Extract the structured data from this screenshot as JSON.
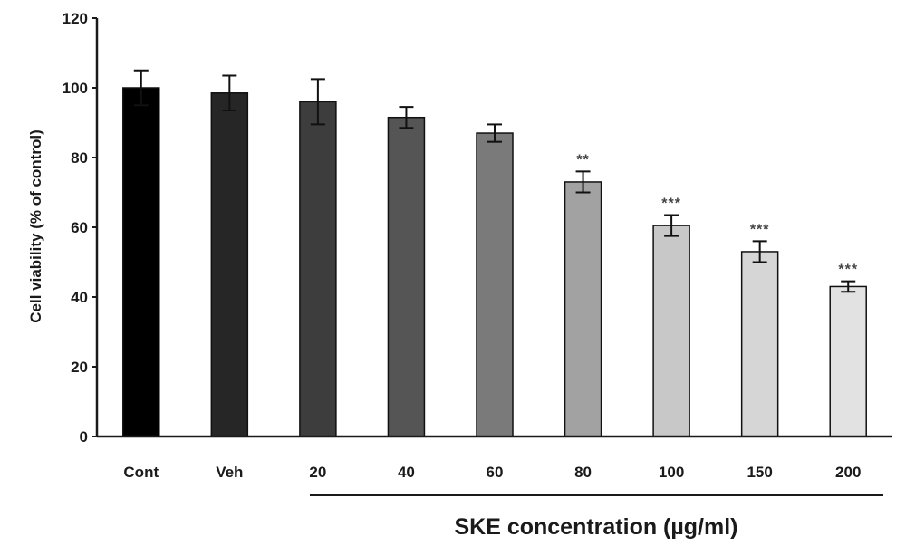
{
  "chart_data": {
    "type": "bar",
    "title": "",
    "ylabel": "Cell viability (% of control)",
    "ylim": [
      0,
      120
    ],
    "yticks": [
      "0",
      "20",
      "40",
      "60",
      "80",
      "100",
      "120"
    ],
    "categories": [
      "Cont",
      "Veh",
      "20",
      "40",
      "60",
      "80",
      "100",
      "150",
      "200"
    ],
    "values": [
      100,
      98.5,
      96,
      91.5,
      87,
      73,
      60.5,
      53,
      43
    ],
    "errors": [
      5,
      5,
      6.5,
      3,
      2.5,
      3,
      3,
      3,
      1.5
    ],
    "significance": [
      "",
      "",
      "",
      "",
      "",
      "**",
      "***",
      "***",
      "***"
    ],
    "bar_colors": [
      "#000000",
      "#262626",
      "#3d3d3d",
      "#555555",
      "#7a7a7a",
      "#a2a2a2",
      "#c8c8c8",
      "#d6d6d6",
      "#e2e2e2"
    ],
    "group_label": "SKE concentration (µg/ml)",
    "grid": false,
    "legend": "none"
  }
}
